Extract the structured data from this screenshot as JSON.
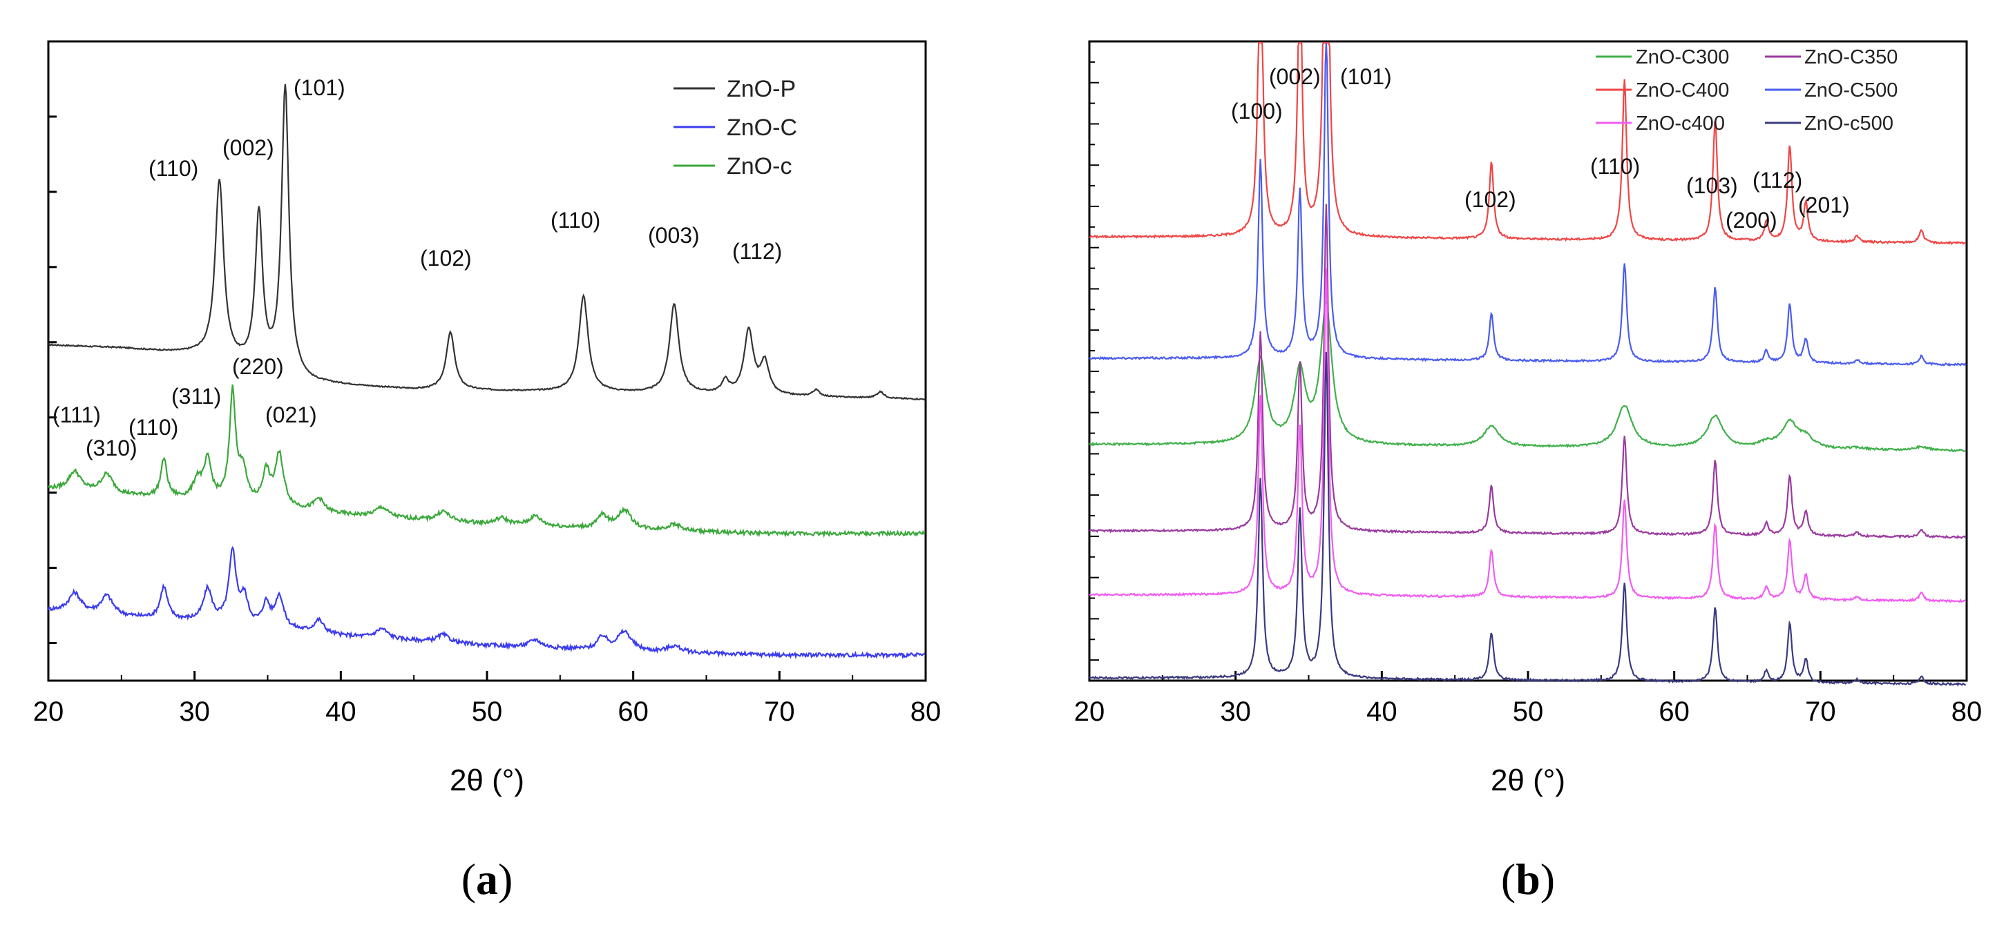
{
  "chart_data": [
    {
      "type": "line",
      "panel_label_open": "(",
      "panel_label_letter": "a",
      "panel_label_close": ")",
      "xlabel": "2θ (°)",
      "ylabel": "",
      "xlim": [
        20,
        80
      ],
      "x_ticks": [
        "20",
        "30",
        "40",
        "50",
        "60",
        "70",
        "80"
      ],
      "y_ticks_visible": false,
      "legend_position": "top-right",
      "series": [
        {
          "name": "ZnO-P",
          "color": "#333333",
          "baseline": 0.53,
          "points_2theta": [
            [
              20,
              0.525
            ],
            [
              25,
              0.52
            ],
            [
              30,
              0.51
            ],
            [
              38,
              0.465
            ],
            [
              45,
              0.455
            ],
            [
              60,
              0.45
            ],
            [
              70,
              0.445
            ],
            [
              80,
              0.44
            ]
          ],
          "peaks": [
            [
              31.7,
              0.28,
              0.35
            ],
            [
              34.4,
              0.24,
              0.3
            ],
            [
              36.2,
              0.45,
              0.3
            ],
            [
              47.5,
              0.09,
              0.35
            ],
            [
              56.6,
              0.15,
              0.38
            ],
            [
              62.8,
              0.14,
              0.38
            ],
            [
              66.3,
              0.02,
              0.3
            ],
            [
              67.9,
              0.1,
              0.38
            ],
            [
              69.0,
              0.05,
              0.35
            ],
            [
              72.5,
              0.01,
              0.3
            ],
            [
              76.9,
              0.01,
              0.3
            ]
          ]
        },
        {
          "name": "ZnO-C",
          "color": "#3b3bf0",
          "baseline": 0.0,
          "points_2theta": [
            [
              20,
              0.11
            ],
            [
              25,
              0.1
            ],
            [
              32,
              0.09
            ],
            [
              40,
              0.07
            ],
            [
              50,
              0.055
            ],
            [
              60,
              0.045
            ],
            [
              70,
              0.04
            ],
            [
              80,
              0.04
            ]
          ],
          "peaks": [
            [
              21.8,
              0.03,
              0.5
            ],
            [
              24.0,
              0.03,
              0.5
            ],
            [
              27.9,
              0.05,
              0.3
            ],
            [
              30.9,
              0.05,
              0.35
            ],
            [
              32.6,
              0.11,
              0.3
            ],
            [
              33.4,
              0.04,
              0.3
            ],
            [
              34.9,
              0.035,
              0.3
            ],
            [
              35.8,
              0.05,
              0.35
            ],
            [
              38.5,
              0.02,
              0.4
            ],
            [
              42.8,
              0.015,
              0.5
            ],
            [
              47.0,
              0.012,
              0.5
            ],
            [
              53.3,
              0.012,
              0.5
            ],
            [
              57.9,
              0.02,
              0.4
            ],
            [
              59.4,
              0.03,
              0.6
            ],
            [
              62.8,
              0.01,
              0.6
            ]
          ]
        },
        {
          "name": "ZnO-c",
          "color": "#3aa83a",
          "baseline": 0.0,
          "points_2theta": [
            [
              20,
              0.3
            ],
            [
              25,
              0.29
            ],
            [
              32,
              0.28
            ],
            [
              40,
              0.26
            ],
            [
              50,
              0.245
            ],
            [
              60,
              0.235
            ],
            [
              70,
              0.23
            ],
            [
              80,
              0.23
            ]
          ],
          "peaks": [
            [
              21.8,
              0.03,
              0.5
            ],
            [
              24.0,
              0.03,
              0.5
            ],
            [
              27.9,
              0.06,
              0.25
            ],
            [
              30.2,
              0.03,
              0.35
            ],
            [
              30.9,
              0.06,
              0.3
            ],
            [
              32.6,
              0.17,
              0.25
            ],
            [
              33.3,
              0.05,
              0.3
            ],
            [
              34.9,
              0.05,
              0.3
            ],
            [
              35.8,
              0.08,
              0.35
            ],
            [
              38.5,
              0.02,
              0.4
            ],
            [
              42.8,
              0.015,
              0.5
            ],
            [
              47.0,
              0.015,
              0.5
            ],
            [
              51.0,
              0.01,
              0.5
            ],
            [
              53.3,
              0.015,
              0.5
            ],
            [
              57.9,
              0.02,
              0.4
            ],
            [
              59.4,
              0.03,
              0.6
            ],
            [
              62.8,
              0.01,
              0.6
            ]
          ]
        }
      ],
      "annotations": [
        "(101)",
        "(110)",
        "(002)",
        "(102)",
        "(110)",
        "(003)",
        "(112)",
        "(220)",
        "(111)",
        "(311)",
        "(310)",
        "(110)",
        "(021)"
      ]
    },
    {
      "type": "line",
      "panel_label_open": "(",
      "panel_label_letter": "b",
      "panel_label_close": ")",
      "xlabel": "2θ (°)",
      "ylabel": "",
      "xlim": [
        20,
        80
      ],
      "x_ticks": [
        "20",
        "30",
        "40",
        "50",
        "60",
        "70",
        "80"
      ],
      "y_ticks_visible": false,
      "legend_position": "top-right",
      "series": [
        {
          "name": "ZnO-C400",
          "color": "#f04545",
          "offset": 0.69,
          "scale": 1.0
        },
        {
          "name": "ZnO-C500",
          "color": "#4a5cf0",
          "offset": 0.5,
          "scale": 0.62
        },
        {
          "name": "ZnO-C300",
          "color": "#3fb04a",
          "offset": 0.365,
          "scale": 0.48
        },
        {
          "name": "ZnO-C350",
          "color": "#9b3aa0",
          "offset": 0.23,
          "scale": 0.62
        },
        {
          "name": "ZnO-c400",
          "color": "#f25cf2",
          "offset": 0.13,
          "scale": 0.62
        },
        {
          "name": "ZnO-c500",
          "color": "#3a3a80",
          "offset": 0.0,
          "scale": 0.62
        }
      ],
      "legend_order": [
        "ZnO-C300",
        "ZnO-C350",
        "ZnO-C400",
        "ZnO-C500",
        "ZnO-c400",
        "ZnO-c500"
      ],
      "peaks_2theta": [
        [
          31.7,
          0.5
        ],
        [
          34.4,
          0.42
        ],
        [
          36.2,
          0.82
        ],
        [
          47.5,
          0.12
        ],
        [
          56.6,
          0.25
        ],
        [
          62.8,
          0.19
        ],
        [
          66.3,
          0.03
        ],
        [
          67.9,
          0.15
        ],
        [
          69.0,
          0.06
        ],
        [
          72.5,
          0.01
        ],
        [
          76.9,
          0.02
        ]
      ],
      "annotations": [
        "(100)",
        "(002)",
        "(101)",
        "(102)",
        "(110)",
        "(103)",
        "(112)",
        "(200)",
        "(201)"
      ]
    }
  ]
}
